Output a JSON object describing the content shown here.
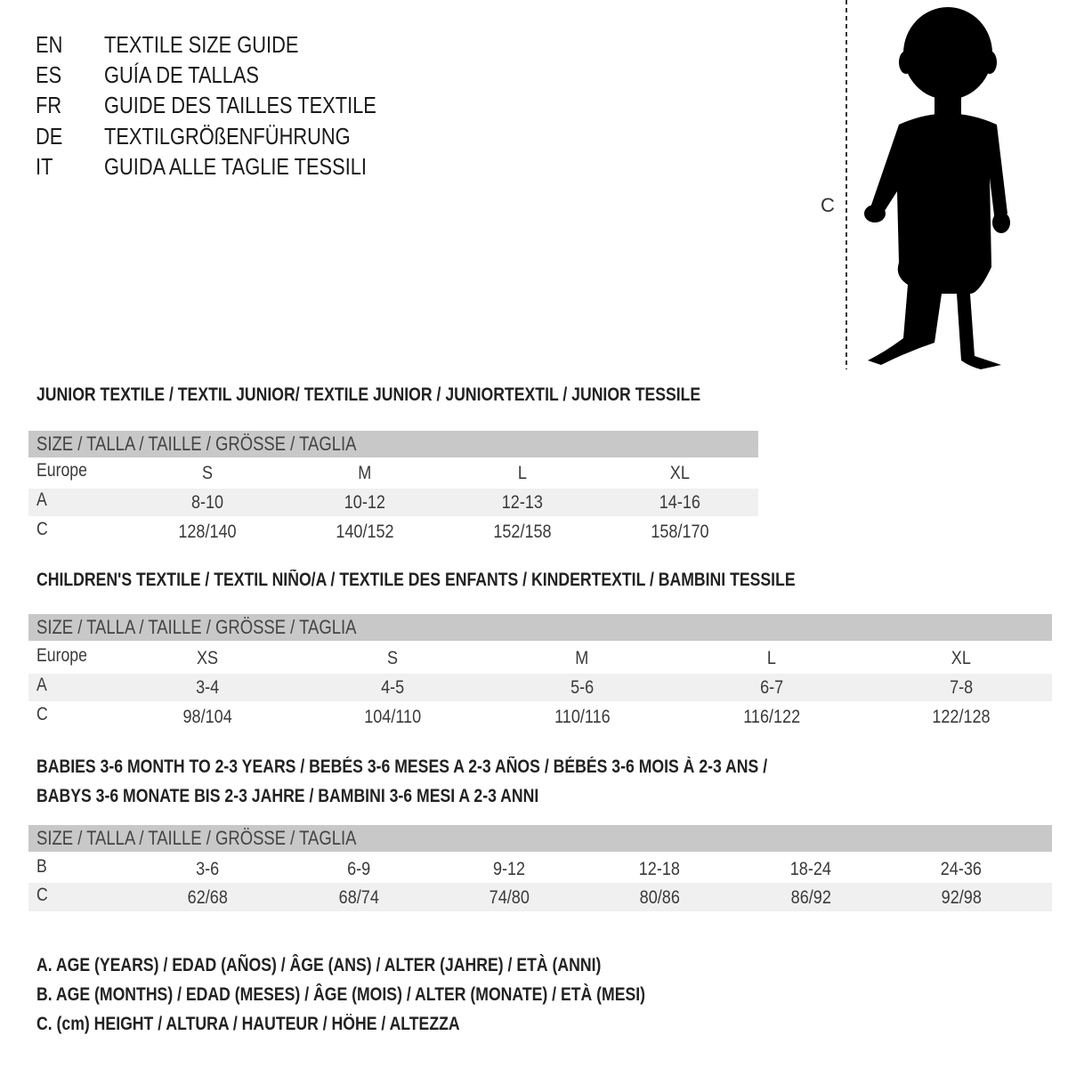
{
  "titles": [
    {
      "lang": "EN",
      "text": "TEXTILE SIZE GUIDE"
    },
    {
      "lang": "ES",
      "text": "GUÍA DE TALLAS"
    },
    {
      "lang": "FR",
      "text": "GUIDE DES TAILLES TEXTILE"
    },
    {
      "lang": "DE",
      "text": "TEXTILGRÖßENFÜHRUNG"
    },
    {
      "lang": "IT",
      "text": "GUIDA ALLE TAGLIE TESSILI"
    }
  ],
  "figure": {
    "measure_label": "C"
  },
  "size_header": "SIZE / TALLA / TAILLE / GRÖSSE / TAGLIA",
  "junior": {
    "heading": "JUNIOR TEXTILE / TEXTIL JUNIOR/ TEXTILE JUNIOR / JUNIORTEXTIL / JUNIOR TESSILE",
    "rows": [
      {
        "label": "Europe",
        "values": [
          "S",
          "M",
          "L",
          "XL"
        ]
      },
      {
        "label": "A",
        "values": [
          "8-10",
          "10-12",
          "12-13",
          "14-16"
        ]
      },
      {
        "label": "C",
        "values": [
          "128/140",
          "140/152",
          "152/158",
          "158/170"
        ]
      }
    ]
  },
  "children": {
    "heading": "CHILDREN'S TEXTILE / TEXTIL NIÑO/A / TEXTILE DES ENFANTS / KINDERTEXTIL / BAMBINI TESSILE",
    "rows": [
      {
        "label": "Europe",
        "values": [
          "XS",
          "S",
          "M",
          "L",
          "XL"
        ]
      },
      {
        "label": "A",
        "values": [
          "3-4",
          "4-5",
          "5-6",
          "6-7",
          "7-8"
        ]
      },
      {
        "label": "C",
        "values": [
          "98/104",
          "104/110",
          "110/116",
          "116/122",
          "122/128"
        ]
      }
    ]
  },
  "babies": {
    "heading_line1": "BABIES 3-6 MONTH TO 2-3 YEARS / BEBÉS 3-6 MESES A 2-3 AÑOS / BÉBÉS 3-6 MOIS À 2-3 ANS /",
    "heading_line2": "BABYS 3-6 MONATE BIS 2-3 JAHRE / BAMBINI 3-6 MESI A 2-3 ANNI",
    "rows": [
      {
        "label": "B",
        "values": [
          "3-6",
          "6-9",
          "9-12",
          "12-18",
          "18-24",
          "24-36"
        ]
      },
      {
        "label": "C",
        "values": [
          "62/68",
          "68/74",
          "74/80",
          "80/86",
          "86/92",
          "92/98"
        ]
      }
    ]
  },
  "legend": [
    "A. AGE (YEARS) / EDAD (AÑOS) / ÂGE (ANS) / ALTER (JAHRE) / ETÀ (ANNI)",
    "B. AGE (MONTHS) / EDAD (MESES) / ÂGE (MOIS) / ALTER (MONATE) / ETÀ (MESI)",
    "C. (cm) HEIGHT / ALTURA / HAUTEUR / HÖHE / ALTEZZA"
  ]
}
